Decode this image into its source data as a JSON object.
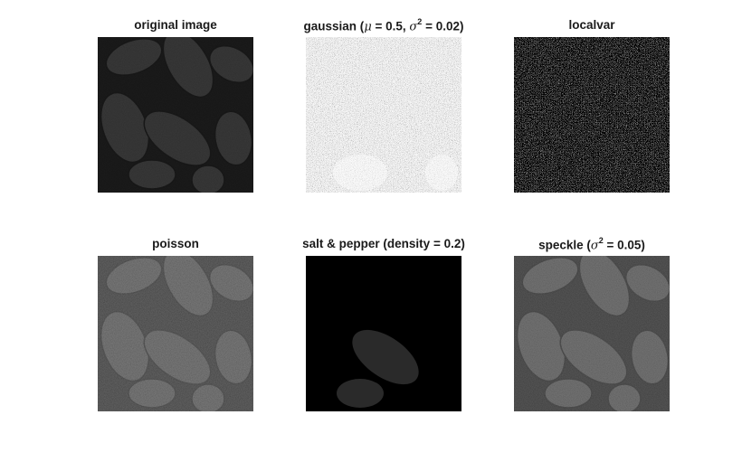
{
  "figure": {
    "background": "#ffffff",
    "panels": [
      {
        "id": "original",
        "title": "original image",
        "image_label": "seed-pods-original-image",
        "style": "dark"
      },
      {
        "id": "gaussian",
        "title_prefix": "gaussian (",
        "mu_symbol": "μ",
        "mu_part": " = 0.5, ",
        "sigma_symbol": "σ",
        "sigma_exp": "2",
        "sigma_part": " = 0.02)",
        "image_label": "gaussian-noise-image",
        "style": "bright-noise"
      },
      {
        "id": "localvar",
        "title": "localvar",
        "image_label": "localvar-noise-image",
        "style": "sparse-noise"
      },
      {
        "id": "poisson",
        "title": "poisson",
        "image_label": "poisson-noise-image",
        "style": "dark-fine"
      },
      {
        "id": "saltpepper",
        "title": "salt & pepper (density = 0.2)",
        "image_label": "salt-pepper-noise-image",
        "style": "salt-pepper"
      },
      {
        "id": "speckle",
        "title_prefix": "speckle (",
        "sigma_symbol": "σ",
        "sigma_exp": "2",
        "sigma_part": " = 0.05)",
        "image_label": "speckle-noise-image",
        "style": "dark-speckle"
      }
    ]
  }
}
